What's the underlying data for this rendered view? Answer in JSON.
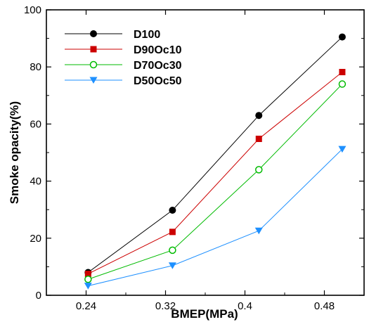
{
  "chart_data": {
    "type": "line",
    "title": "",
    "xlabel": "BMEP(MPa)",
    "ylabel": "Smoke opacity(%)",
    "xlim": [
      0.2,
      0.52
    ],
    "ylim": [
      0,
      100
    ],
    "xticks": [
      "0.24",
      "0.32",
      "0.4",
      "0.48"
    ],
    "xtick_values": [
      0.24,
      0.32,
      0.4,
      0.48
    ],
    "yticks": [
      "0",
      "20",
      "40",
      "60",
      "80",
      "100"
    ],
    "ytick_values": [
      0,
      20,
      40,
      60,
      80,
      100
    ],
    "x": [
      0.242,
      0.327,
      0.414,
      0.498
    ],
    "series": [
      {
        "name": "D100",
        "values": [
          8.0,
          29.8,
          63.0,
          90.5
        ],
        "color": "#000000",
        "marker": "circle-filled"
      },
      {
        "name": "D90Oc10",
        "values": [
          7.5,
          22.2,
          54.8,
          78.2
        ],
        "color": "#cc0000",
        "marker": "square-filled"
      },
      {
        "name": "D70Oc30",
        "values": [
          5.6,
          15.8,
          44.0,
          74.0
        ],
        "color": "#00bb00",
        "marker": "circle-open"
      },
      {
        "name": "D50Oc50",
        "values": [
          3.3,
          10.4,
          22.6,
          51.2
        ],
        "color": "#1e90ff",
        "marker": "triangle-down-filled"
      }
    ],
    "grid": false,
    "legend_position": "top-left"
  }
}
